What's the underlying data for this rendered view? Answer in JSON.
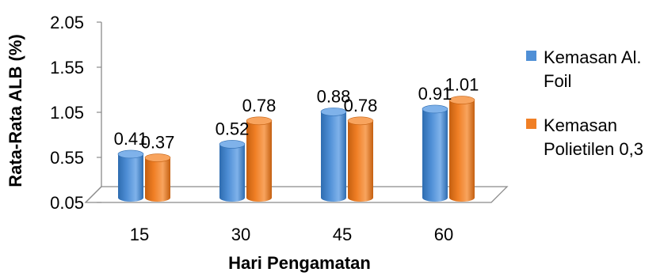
{
  "chart_data": {
    "type": "bar",
    "title": "",
    "xlabel": "Hari Pengamatan",
    "ylabel": "Rata-Rata ALB (%)",
    "categories": [
      "15",
      "30",
      "45",
      "60"
    ],
    "yticks": [
      "0.05",
      "0.55",
      "1.05",
      "1.55",
      "2.05"
    ],
    "ylim": [
      0.05,
      2.05
    ],
    "grid": false,
    "legend_position": "right",
    "style": "3d",
    "series": [
      {
        "name_lines": [
          "Kemasan Al.",
          "Foil"
        ],
        "values": [
          0.41,
          0.52,
          0.88,
          0.91
        ],
        "labels": [
          "0.41",
          "0.52",
          "0.88",
          "0.91"
        ],
        "color": "#4F8FD6",
        "color_dark": "#2E6CB0",
        "color_light": "#7FB2EA"
      },
      {
        "name_lines": [
          "Kemasan",
          "Polietilen 0,3"
        ],
        "values": [
          0.37,
          0.78,
          0.78,
          1.01
        ],
        "labels": [
          "0.37",
          "0.78",
          "0.78",
          "1.01"
        ],
        "color": "#F07F25",
        "color_dark": "#C45F10",
        "color_light": "#F8A45E"
      }
    ]
  }
}
